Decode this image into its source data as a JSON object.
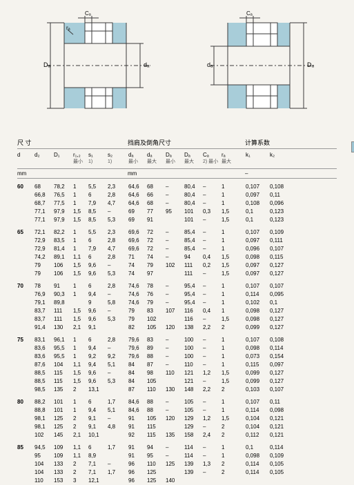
{
  "diagram": {
    "label_Ca": "Cₐ",
    "label_ra": "rₐ",
    "label_Da": "Dₐ",
    "label_da": "dₐ",
    "body_fill": "#a8cdd9",
    "ring_fill": "#ffffff",
    "hatch": "#6e93a0",
    "line": "#3a3a3a"
  },
  "headers": {
    "section_dim": "尺 寸",
    "section_shoulder": "挡肩及倒角尺寸",
    "section_calc": "计算系数",
    "unit_mm": "mm",
    "unit_dash": "–",
    "cols": [
      {
        "t": "d",
        "s": ""
      },
      {
        "t": "d₂",
        "s": ""
      },
      {
        "t": "D₁",
        "s": ""
      },
      {
        "t": "r₁,₂",
        "s": "最小"
      },
      {
        "t": "s₁",
        "s": "1)"
      },
      {
        "t": "s₂",
        "s": "1)"
      },
      {
        "t": "dₐ",
        "s": "最小"
      },
      {
        "t": "dₐ",
        "s": "最大"
      },
      {
        "t": "Dₐ",
        "s": "最小"
      },
      {
        "t": "Dₐ",
        "s": "最大"
      },
      {
        "t": "Cₐ",
        "s": "2) 最小"
      },
      {
        "t": "rₐ",
        "s": "最大"
      },
      {
        "t": "k₁",
        "s": ""
      },
      {
        "t": "k₂",
        "s": ""
      }
    ]
  },
  "groups": [
    {
      "d": "60",
      "rows": [
        [
          "68",
          "78,2",
          "1",
          "5,5",
          "2,3",
          "64,6",
          "68",
          "–",
          "80,4",
          "–",
          "1",
          "0,107",
          "0,108"
        ],
        [
          "66,8",
          "76,5",
          "1",
          "6",
          "2,8",
          "64,6",
          "66",
          "–",
          "80,4",
          "–",
          "1",
          "0,097",
          "0,11"
        ],
        [
          "68,7",
          "77,5",
          "1",
          "7,9",
          "4,7",
          "64,6",
          "68",
          "–",
          "80,4",
          "–",
          "1",
          "0,108",
          "0,096"
        ],
        [
          "77,1",
          "97,9",
          "1,5",
          "8,5",
          "–",
          "69",
          "77",
          "95",
          "101",
          "0,3",
          "1,5",
          "0,1",
          "0,123"
        ],
        [
          "77,1",
          "97,9",
          "1,5",
          "8,5",
          "5,3",
          "69",
          "91",
          "",
          "101",
          "–",
          "1,5",
          "0,1",
          "0,123"
        ]
      ]
    },
    {
      "d": "65",
      "rows": [
        [
          "72,1",
          "82,2",
          "1",
          "5,5",
          "2,3",
          "69,6",
          "72",
          "–",
          "85,4",
          "–",
          "1",
          "0,107",
          "0,109"
        ],
        [
          "72,9",
          "83,5",
          "1",
          "6",
          "2,8",
          "69,6",
          "72",
          "–",
          "85,4",
          "–",
          "1",
          "0,097",
          "0,111"
        ],
        [
          "72,9",
          "81,4",
          "1",
          "7,9",
          "4,7",
          "69,6",
          "72",
          "–",
          "85,4",
          "–",
          "1",
          "0,096",
          "0,107"
        ],
        [
          "74,2",
          "89,1",
          "1,1",
          "6",
          "2,8",
          "71",
          "74",
          "–",
          "94",
          "0,4",
          "1,5",
          "0,098",
          "0,115"
        ],
        [
          "79",
          "106",
          "1,5",
          "9,6",
          "–",
          "74",
          "79",
          "102",
          "111",
          "0,2",
          "1,5",
          "0,097",
          "0,127"
        ],
        [
          "79",
          "106",
          "1,5",
          "9,6",
          "5,3",
          "74",
          "97",
          "",
          "111",
          "–",
          "1,5",
          "0,097",
          "0,127"
        ]
      ]
    },
    {
      "d": "70",
      "rows": [
        [
          "78",
          "91",
          "1",
          "6",
          "2,8",
          "74,6",
          "78",
          "–",
          "95,4",
          "–",
          "1",
          "0,107",
          "0,107"
        ],
        [
          "76,9",
          "90,3",
          "1",
          "9,4",
          "–",
          "74,6",
          "76",
          "–",
          "95,4",
          "–",
          "1",
          "0,114",
          "0,095"
        ],
        [
          "79,1",
          "89,8",
          "",
          "9",
          "5,8",
          "74,6",
          "79",
          "–",
          "95,4",
          "–",
          "1",
          "0,102",
          "0,1"
        ],
        [
          "83,7",
          "111",
          "1,5",
          "9,6",
          "–",
          "79",
          "83",
          "107",
          "116",
          "0,4",
          "1",
          "0,098",
          "0,127"
        ],
        [
          "83,7",
          "111",
          "1,5",
          "9,6",
          "5,3",
          "79",
          "102",
          "",
          "116",
          "–",
          "1,5",
          "0,098",
          "0,127"
        ],
        [
          "91,4",
          "130",
          "2,1",
          "9,1",
          "",
          "82",
          "105",
          "120",
          "138",
          "2,2",
          "2",
          "0,099",
          "0,127"
        ]
      ]
    },
    {
      "d": "75",
      "rows": [
        [
          "83,1",
          "96,1",
          "1",
          "6",
          "2,8",
          "79,6",
          "83",
          "–",
          "100",
          "–",
          "1",
          "0,107",
          "0,108"
        ],
        [
          "83,6",
          "95,5",
          "1",
          "9,4",
          "–",
          "79,6",
          "89",
          "–",
          "100",
          "–",
          "1",
          "0,098",
          "0,114"
        ],
        [
          "83,6",
          "95,5",
          "1",
          "9,2",
          "9,2",
          "79,6",
          "88",
          "–",
          "100",
          "–",
          "1",
          "0,073",
          "0,154"
        ],
        [
          "87,6",
          "104",
          "1,1",
          "9,4",
          "5,1",
          "84",
          "87",
          "–",
          "110",
          "–",
          "1",
          "0,115",
          "0,097"
        ],
        [
          "88,5",
          "115",
          "1,5",
          "9,6",
          "–",
          "84",
          "98",
          "110",
          "121",
          "1,2",
          "1,5",
          "0,099",
          "0,127"
        ],
        [
          "88,5",
          "115",
          "1,5",
          "9,6",
          "5,3",
          "84",
          "105",
          "",
          "121",
          "–",
          "1,5",
          "0,099",
          "0,127"
        ],
        [
          "98,5",
          "135",
          "2",
          "13,1",
          "",
          "87",
          "110",
          "130",
          "148",
          "2,2",
          "2",
          "0,103",
          "0,107"
        ]
      ]
    },
    {
      "d": "80",
      "rows": [
        [
          "88,2",
          "101",
          "1",
          "6",
          "1,7",
          "84,6",
          "88",
          "–",
          "105",
          "–",
          "1",
          "0,107",
          "0,11"
        ],
        [
          "88,8",
          "101",
          "1",
          "9,4",
          "5,1",
          "84,6",
          "88",
          "–",
          "105",
          "–",
          "1",
          "0,114",
          "0,098"
        ],
        [
          "98,1",
          "125",
          "2",
          "9,1",
          "–",
          "91",
          "105",
          "120",
          "129",
          "1,2",
          "1,5",
          "0,104",
          "0,121"
        ],
        [
          "98,1",
          "125",
          "2",
          "9,1",
          "4,8",
          "91",
          "115",
          "",
          "129",
          "–",
          "2",
          "0,104",
          "0,121"
        ],
        [
          "102",
          "145",
          "2,1",
          "10,1",
          "",
          "92",
          "115",
          "135",
          "158",
          "2,4",
          "2",
          "0,112",
          "0,121"
        ]
      ]
    },
    {
      "d": "85",
      "rows": [
        [
          "94,5",
          "109",
          "1,1",
          "6",
          "1,7",
          "91",
          "94",
          "–",
          "114",
          "–",
          "1",
          "0,1",
          "0,114"
        ],
        [
          "95",
          "109",
          "1,1",
          "8,9",
          "",
          "91",
          "95",
          "–",
          "114",
          "–",
          "1",
          "0,098",
          "0,109"
        ],
        [
          "104",
          "133",
          "2",
          "7,1",
          "–",
          "96",
          "110",
          "125",
          "139",
          "1,3",
          "2",
          "0,114",
          "0,105"
        ],
        [
          "104",
          "133",
          "2",
          "7,1",
          "1,7",
          "96",
          "125",
          "",
          "139",
          "–",
          "2",
          "0,114",
          "0,105"
        ],
        [
          "110",
          "153",
          "3",
          "12,1",
          "",
          "96",
          "125",
          "140",
          "",
          "",
          "",
          "",
          ""
        ]
      ]
    }
  ]
}
